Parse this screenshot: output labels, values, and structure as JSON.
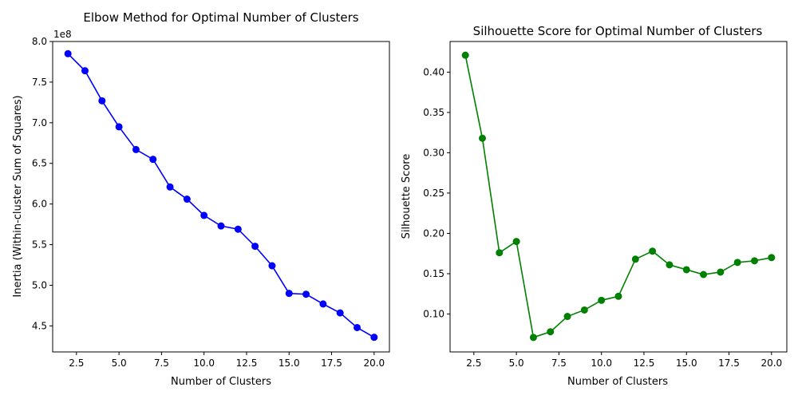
{
  "chart_data": [
    {
      "type": "line",
      "title": "Elbow Method for Optimal Number of Clusters",
      "xlabel": "Number of Clusters",
      "ylabel": "Inertia (Within-cluster Sum of Squares)",
      "y_offset_label": "1e8",
      "xlim": [
        1.1,
        20.9
      ],
      "ylim": [
        4.18,
        8.0
      ],
      "x_ticks": [
        2.5,
        5.0,
        7.5,
        10.0,
        12.5,
        15.0,
        17.5,
        20.0
      ],
      "x_tick_labels": [
        "2.5",
        "5.0",
        "7.5",
        "10.0",
        "12.5",
        "15.0",
        "17.5",
        "20.0"
      ],
      "y_ticks": [
        4.5,
        5.0,
        5.5,
        6.0,
        6.5,
        7.0,
        7.5,
        8.0
      ],
      "y_tick_labels": [
        "4.5",
        "5.0",
        "5.5",
        "6.0",
        "6.5",
        "7.0",
        "7.5",
        "8.0"
      ],
      "grid": false,
      "color": "#0000ff",
      "marker": "circle",
      "series": [
        {
          "x": [
            2,
            3,
            4,
            5,
            6,
            7,
            8,
            9,
            10,
            11,
            12,
            13,
            14,
            15,
            16,
            17,
            18,
            19,
            20
          ],
          "values": [
            7.85,
            7.64,
            7.27,
            6.95,
            6.67,
            6.55,
            6.21,
            6.06,
            5.86,
            5.73,
            5.69,
            5.48,
            5.24,
            4.9,
            4.89,
            4.77,
            4.66,
            4.48,
            4.36
          ]
        }
      ]
    },
    {
      "type": "line",
      "title": "Silhouette Score for Optimal Number of Clusters",
      "xlabel": "Number of Clusters",
      "ylabel": "Silhouette Score",
      "xlim": [
        1.1,
        20.9
      ],
      "ylim": [
        0.053,
        0.438
      ],
      "x_ticks": [
        2.5,
        5.0,
        7.5,
        10.0,
        12.5,
        15.0,
        17.5,
        20.0
      ],
      "x_tick_labels": [
        "2.5",
        "5.0",
        "7.5",
        "10.0",
        "12.5",
        "15.0",
        "17.5",
        "20.0"
      ],
      "y_ticks": [
        0.1,
        0.15,
        0.2,
        0.25,
        0.3,
        0.35,
        0.4
      ],
      "y_tick_labels": [
        "0.10",
        "0.15",
        "0.20",
        "0.25",
        "0.30",
        "0.35",
        "0.40"
      ],
      "grid": false,
      "color": "#008000",
      "marker": "circle",
      "series": [
        {
          "x": [
            2,
            3,
            4,
            5,
            6,
            7,
            8,
            9,
            10,
            11,
            12,
            13,
            14,
            15,
            16,
            17,
            18,
            19,
            20
          ],
          "values": [
            0.421,
            0.318,
            0.176,
            0.19,
            0.071,
            0.078,
            0.097,
            0.105,
            0.117,
            0.122,
            0.168,
            0.178,
            0.161,
            0.155,
            0.149,
            0.152,
            0.164,
            0.166,
            0.17
          ]
        }
      ]
    }
  ]
}
